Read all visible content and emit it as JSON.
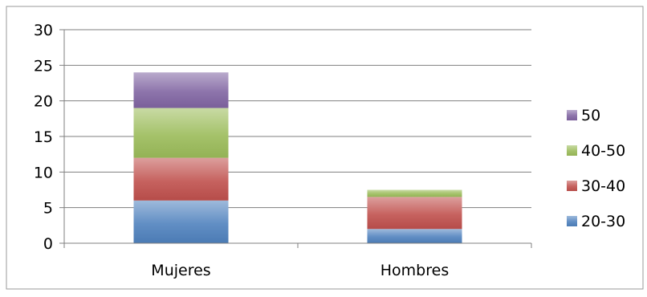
{
  "chart_data": {
    "type": "bar",
    "stacked": true,
    "categories": [
      "Mujeres",
      "Hombres"
    ],
    "series": [
      {
        "name": "20-30",
        "color": "#4f81bd",
        "values": [
          6,
          2
        ]
      },
      {
        "name": "30-40",
        "color": "#c0504d",
        "values": [
          6,
          4.5
        ]
      },
      {
        "name": "40-50",
        "color": "#9bbb59",
        "values": [
          7,
          1
        ]
      },
      {
        "name": "50",
        "color": "#8064a2",
        "values": [
          5,
          0
        ]
      }
    ],
    "ylim": [
      0,
      30
    ],
    "yticks": [
      "0",
      "5",
      "10",
      "15",
      "20",
      "25",
      "30"
    ],
    "ytick_values": [
      0,
      5,
      10,
      15,
      20,
      25,
      30
    ],
    "grid": true,
    "legend_position": "right",
    "legend_order": "reverse",
    "title": "",
    "xlabel": "",
    "ylabel": ""
  }
}
